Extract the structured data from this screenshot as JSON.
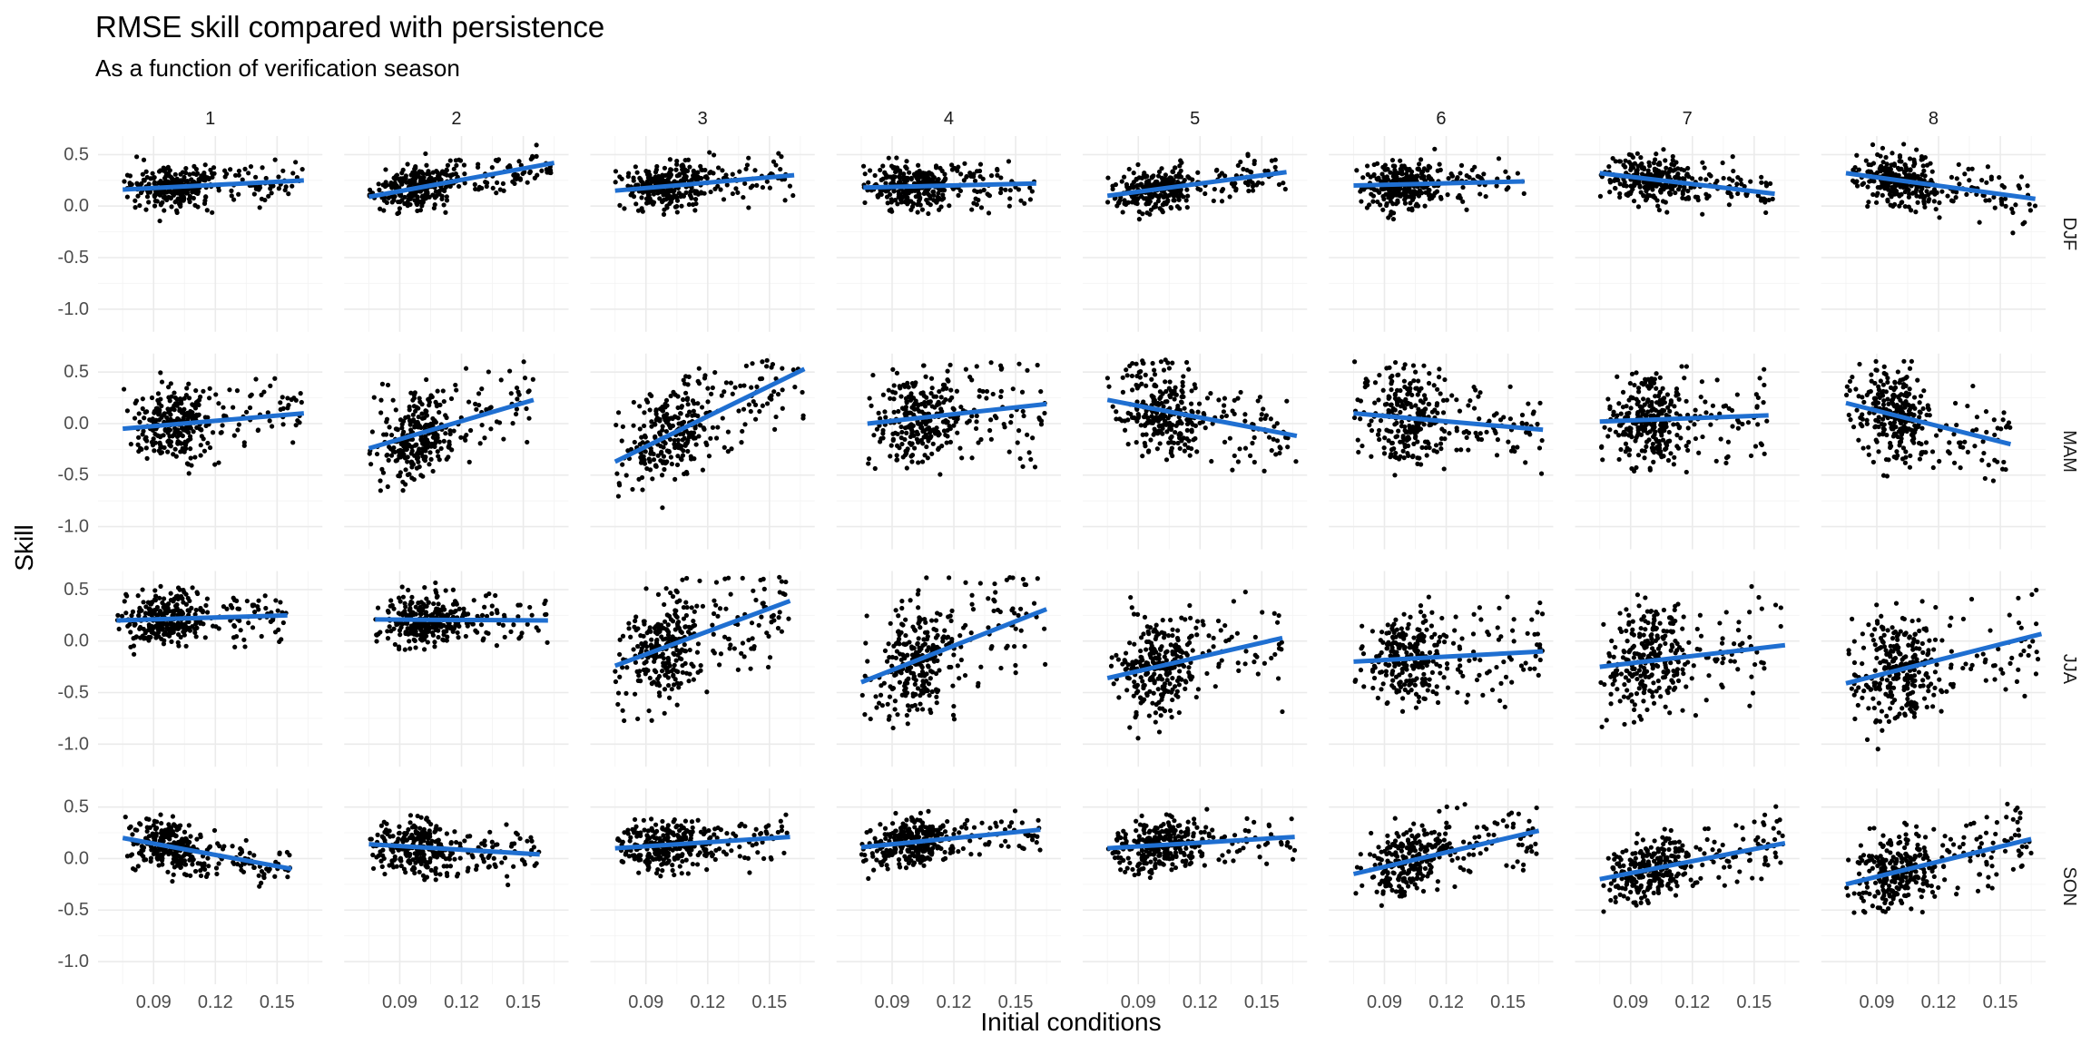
{
  "chart_data": {
    "type": "scatter",
    "title": "RMSE skill compared with persistence",
    "subtitle": "As a function of verification season",
    "xlabel": "Initial conditions",
    "ylabel": "Skill",
    "facet_columns": [
      "1",
      "2",
      "3",
      "4",
      "5",
      "6",
      "7",
      "8"
    ],
    "facet_rows": [
      "DJF",
      "MAM",
      "JJA",
      "SON"
    ],
    "xlim": [
      0.063,
      0.172
    ],
    "ylim": [
      -1.22,
      0.68
    ],
    "x_ticks": [
      0.09,
      0.12,
      0.15
    ],
    "x_tick_labels": [
      "0.09",
      "0.12",
      "0.15"
    ],
    "y_ticks": [
      -1.0,
      -0.5,
      0.0,
      0.5
    ],
    "y_tick_labels": [
      "-1.0",
      "-0.5",
      "0.0",
      "0.5"
    ],
    "grid": true,
    "point_color": "#000000",
    "fit_color": "#1f6fd1",
    "points_per_panel": 320,
    "panels": [
      {
        "row": "DJF",
        "col": "1",
        "fit": {
          "x": [
            0.075,
            0.163
          ],
          "y": [
            0.16,
            0.25
          ]
        },
        "center": 0.2,
        "spread": 0.1
      },
      {
        "row": "DJF",
        "col": "2",
        "fit": {
          "x": [
            0.075,
            0.165
          ],
          "y": [
            0.09,
            0.42
          ]
        },
        "center": 0.25,
        "spread": 0.1
      },
      {
        "row": "DJF",
        "col": "3",
        "fit": {
          "x": [
            0.075,
            0.162
          ],
          "y": [
            0.15,
            0.3
          ]
        },
        "center": 0.22,
        "spread": 0.11
      },
      {
        "row": "DJF",
        "col": "4",
        "fit": {
          "x": [
            0.076,
            0.16
          ],
          "y": [
            0.18,
            0.22
          ]
        },
        "center": 0.2,
        "spread": 0.12
      },
      {
        "row": "DJF",
        "col": "5",
        "fit": {
          "x": [
            0.075,
            0.162
          ],
          "y": [
            0.1,
            0.33
          ]
        },
        "center": 0.22,
        "spread": 0.1
      },
      {
        "row": "DJF",
        "col": "6",
        "fit": {
          "x": [
            0.075,
            0.158
          ],
          "y": [
            0.2,
            0.24
          ]
        },
        "center": 0.22,
        "spread": 0.11
      },
      {
        "row": "DJF",
        "col": "7",
        "fit": {
          "x": [
            0.075,
            0.16
          ],
          "y": [
            0.32,
            0.12
          ]
        },
        "center": 0.22,
        "spread": 0.11
      },
      {
        "row": "DJF",
        "col": "8",
        "fit": {
          "x": [
            0.075,
            0.167
          ],
          "y": [
            0.32,
            0.07
          ]
        },
        "center": 0.2,
        "spread": 0.13
      },
      {
        "row": "MAM",
        "col": "1",
        "fit": {
          "x": [
            0.075,
            0.163
          ],
          "y": [
            -0.05,
            0.1
          ]
        },
        "center": 0.02,
        "spread": 0.18
      },
      {
        "row": "MAM",
        "col": "2",
        "fit": {
          "x": [
            0.075,
            0.155
          ],
          "y": [
            -0.24,
            0.23
          ]
        },
        "center": 0.0,
        "spread": 0.22
      },
      {
        "row": "MAM",
        "col": "3",
        "fit": {
          "x": [
            0.075,
            0.167
          ],
          "y": [
            -0.37,
            0.53
          ]
        },
        "center": 0.05,
        "spread": 0.22
      },
      {
        "row": "MAM",
        "col": "4",
        "fit": {
          "x": [
            0.078,
            0.165
          ],
          "y": [
            0.0,
            0.19
          ]
        },
        "center": 0.1,
        "spread": 0.22
      },
      {
        "row": "MAM",
        "col": "5",
        "fit": {
          "x": [
            0.075,
            0.167
          ],
          "y": [
            0.23,
            -0.12
          ]
        },
        "center": 0.06,
        "spread": 0.2
      },
      {
        "row": "MAM",
        "col": "6",
        "fit": {
          "x": [
            0.075,
            0.167
          ],
          "y": [
            0.1,
            -0.06
          ]
        },
        "center": 0.02,
        "spread": 0.22
      },
      {
        "row": "MAM",
        "col": "7",
        "fit": {
          "x": [
            0.075,
            0.157
          ],
          "y": [
            0.02,
            0.08
          ]
        },
        "center": 0.05,
        "spread": 0.22
      },
      {
        "row": "MAM",
        "col": "8",
        "fit": {
          "x": [
            0.075,
            0.155
          ],
          "y": [
            0.2,
            -0.2
          ]
        },
        "center": 0.05,
        "spread": 0.22
      },
      {
        "row": "JJA",
        "col": "1",
        "fit": {
          "x": [
            0.072,
            0.155
          ],
          "y": [
            0.2,
            0.25
          ]
        },
        "center": 0.23,
        "spread": 0.13
      },
      {
        "row": "JJA",
        "col": "2",
        "fit": {
          "x": [
            0.078,
            0.162
          ],
          "y": [
            0.21,
            0.2
          ]
        },
        "center": 0.2,
        "spread": 0.13
      },
      {
        "row": "JJA",
        "col": "3",
        "fit": {
          "x": [
            0.075,
            0.16
          ],
          "y": [
            -0.24,
            0.39
          ]
        },
        "center": 0.05,
        "spread": 0.25
      },
      {
        "row": "JJA",
        "col": "4",
        "fit": {
          "x": [
            0.075,
            0.165
          ],
          "y": [
            -0.4,
            0.31
          ]
        },
        "center": -0.08,
        "spread": 0.28
      },
      {
        "row": "JJA",
        "col": "5",
        "fit": {
          "x": [
            0.075,
            0.16
          ],
          "y": [
            -0.36,
            0.03
          ]
        },
        "center": -0.15,
        "spread": 0.25
      },
      {
        "row": "JJA",
        "col": "6",
        "fit": {
          "x": [
            0.075,
            0.167
          ],
          "y": [
            -0.2,
            -0.1
          ]
        },
        "center": -0.15,
        "spread": 0.22
      },
      {
        "row": "JJA",
        "col": "7",
        "fit": {
          "x": [
            0.075,
            0.165
          ],
          "y": [
            -0.25,
            -0.04
          ]
        },
        "center": -0.14,
        "spread": 0.25
      },
      {
        "row": "JJA",
        "col": "8",
        "fit": {
          "x": [
            0.075,
            0.17
          ],
          "y": [
            -0.41,
            0.07
          ]
        },
        "center": -0.17,
        "spread": 0.28
      },
      {
        "row": "SON",
        "col": "1",
        "fit": {
          "x": [
            0.075,
            0.157
          ],
          "y": [
            0.2,
            -0.1
          ]
        },
        "center": 0.08,
        "spread": 0.12
      },
      {
        "row": "SON",
        "col": "2",
        "fit": {
          "x": [
            0.075,
            0.158
          ],
          "y": [
            0.14,
            0.04
          ]
        },
        "center": 0.1,
        "spread": 0.13
      },
      {
        "row": "SON",
        "col": "3",
        "fit": {
          "x": [
            0.075,
            0.16
          ],
          "y": [
            0.1,
            0.21
          ]
        },
        "center": 0.15,
        "spread": 0.12
      },
      {
        "row": "SON",
        "col": "4",
        "fit": {
          "x": [
            0.075,
            0.162
          ],
          "y": [
            0.11,
            0.28
          ]
        },
        "center": 0.19,
        "spread": 0.11
      },
      {
        "row": "SON",
        "col": "5",
        "fit": {
          "x": [
            0.075,
            0.166
          ],
          "y": [
            0.1,
            0.21
          ]
        },
        "center": 0.15,
        "spread": 0.12
      },
      {
        "row": "SON",
        "col": "6",
        "fit": {
          "x": [
            0.075,
            0.165
          ],
          "y": [
            -0.15,
            0.27
          ]
        },
        "center": 0.05,
        "spread": 0.16
      },
      {
        "row": "SON",
        "col": "7",
        "fit": {
          "x": [
            0.075,
            0.165
          ],
          "y": [
            -0.2,
            0.15
          ]
        },
        "center": -0.02,
        "spread": 0.15
      },
      {
        "row": "SON",
        "col": "8",
        "fit": {
          "x": [
            0.075,
            0.165
          ],
          "y": [
            -0.25,
            0.19
          ]
        },
        "center": -0.02,
        "spread": 0.18
      }
    ]
  }
}
